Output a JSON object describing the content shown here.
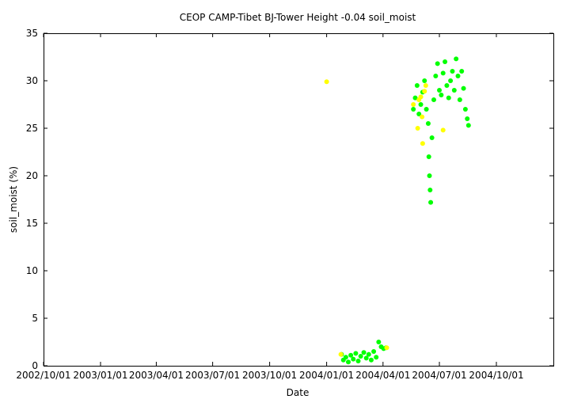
{
  "chart_data": {
    "type": "scatter",
    "title": "CEOP CAMP-Tibet BJ-Tower Height -0.04 soil_moist",
    "xlabel": "Date",
    "ylabel": "soil_moist (%)",
    "xlim": [
      "2002-10-01",
      "2005-01-01"
    ],
    "ylim": [
      0,
      35
    ],
    "yticks": [
      0,
      5,
      10,
      15,
      20,
      25,
      30,
      35
    ],
    "xtick_labels": [
      "2002/10/01",
      "2003/01/01",
      "2003/04/01",
      "2003/07/01",
      "2003/10/01",
      "2004/01/01",
      "2004/04/01",
      "2004/07/01",
      "2004/10/01"
    ],
    "xtick_dates": [
      "2002-10-01",
      "2003-01-01",
      "2003-04-01",
      "2003-07-01",
      "2003-10-01",
      "2004-01-01",
      "2004-04-01",
      "2004-07-01",
      "2004-10-01"
    ],
    "grid": false,
    "colors": {
      "primary": "#00ff00",
      "flagged": "#ffff00"
    },
    "series": [
      {
        "color": "#00ff00",
        "points": [
          [
            "2004-01-25",
            1.2
          ],
          [
            "2004-01-28",
            0.6
          ],
          [
            "2004-02-01",
            0.9
          ],
          [
            "2004-02-05",
            0.4
          ],
          [
            "2004-02-09",
            1.1
          ],
          [
            "2004-02-13",
            0.7
          ],
          [
            "2004-02-17",
            1.3
          ],
          [
            "2004-02-21",
            0.5
          ],
          [
            "2004-02-25",
            1.0
          ],
          [
            "2004-03-01",
            1.4
          ],
          [
            "2004-03-05",
            0.8
          ],
          [
            "2004-03-09",
            1.2
          ],
          [
            "2004-03-13",
            0.6
          ],
          [
            "2004-03-17",
            1.5
          ],
          [
            "2004-03-21",
            0.9
          ],
          [
            "2004-03-25",
            2.5
          ],
          [
            "2004-03-29",
            2.0
          ],
          [
            "2004-04-02",
            1.8
          ],
          [
            "2004-04-06",
            1.9
          ],
          [
            "2004-05-20",
            27.0
          ],
          [
            "2004-05-23",
            28.2
          ],
          [
            "2004-05-26",
            29.5
          ],
          [
            "2004-05-29",
            26.5
          ],
          [
            "2004-06-01",
            27.5
          ],
          [
            "2004-06-04",
            28.8
          ],
          [
            "2004-06-07",
            30.0
          ],
          [
            "2004-06-10",
            27.0
          ],
          [
            "2004-06-13",
            25.5
          ],
          [
            "2004-06-14",
            22.0
          ],
          [
            "2004-06-15",
            20.0
          ],
          [
            "2004-06-16",
            18.5
          ],
          [
            "2004-06-17",
            17.2
          ],
          [
            "2004-06-19",
            24.0
          ],
          [
            "2004-06-22",
            28.0
          ],
          [
            "2004-06-25",
            30.5
          ],
          [
            "2004-06-28",
            31.8
          ],
          [
            "2004-07-01",
            29.0
          ],
          [
            "2004-07-04",
            28.5
          ],
          [
            "2004-07-07",
            30.8
          ],
          [
            "2004-07-10",
            32.0
          ],
          [
            "2004-07-13",
            29.5
          ],
          [
            "2004-07-16",
            28.2
          ],
          [
            "2004-07-19",
            30.0
          ],
          [
            "2004-07-22",
            31.0
          ],
          [
            "2004-07-25",
            29.0
          ],
          [
            "2004-07-28",
            32.3
          ],
          [
            "2004-07-31",
            30.5
          ],
          [
            "2004-08-03",
            28.0
          ],
          [
            "2004-08-06",
            31.0
          ],
          [
            "2004-08-09",
            29.2
          ],
          [
            "2004-08-12",
            27.0
          ],
          [
            "2004-08-15",
            26.0
          ],
          [
            "2004-08-17",
            25.3
          ]
        ]
      },
      {
        "color": "#ffff00",
        "points": [
          [
            "2004-01-01",
            29.9
          ],
          [
            "2004-01-24",
            1.2
          ],
          [
            "2004-04-07",
            1.9
          ],
          [
            "2004-05-20",
            27.5
          ],
          [
            "2004-05-27",
            25.0
          ],
          [
            "2004-05-29",
            28.0
          ],
          [
            "2004-06-01",
            28.3
          ],
          [
            "2004-06-03",
            26.2
          ],
          [
            "2004-06-04",
            23.4
          ],
          [
            "2004-06-07",
            28.9
          ],
          [
            "2004-06-09",
            29.5
          ],
          [
            "2004-07-07",
            24.8
          ]
        ]
      }
    ]
  }
}
